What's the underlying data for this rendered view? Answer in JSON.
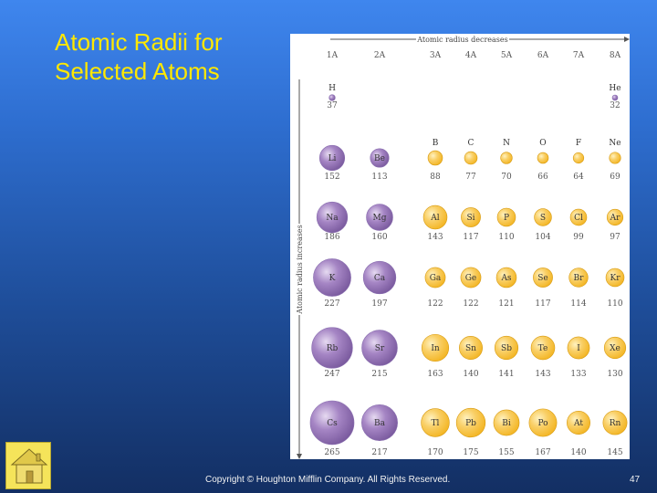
{
  "slide": {
    "title_lines": [
      "Atomic Radii for",
      "Selected Atoms"
    ],
    "footer": "Copyright © Houghton Mifflin Company. All Rights Reserved.",
    "page_number": "47"
  },
  "figure": {
    "top_arrow_label": "Atomic radius decreases",
    "side_arrow_label": "Atomic radius increases",
    "groups": [
      "1A",
      "2A",
      "3A",
      "4A",
      "5A",
      "6A",
      "7A",
      "8A"
    ],
    "colors": {
      "s_block": "#a585c4",
      "p_block": "#f3b523",
      "p_block_light": "#f9cf66"
    },
    "rows": [
      [
        {
          "symbol": "H",
          "radius": 37,
          "group": 0
        },
        {
          "symbol": "He",
          "radius": 32,
          "group": 7
        }
      ],
      [
        {
          "symbol": "Li",
          "radius": 152,
          "group": 0
        },
        {
          "symbol": "Be",
          "radius": 113,
          "group": 1
        },
        {
          "symbol": "B",
          "radius": 88,
          "group": 2
        },
        {
          "symbol": "C",
          "radius": 77,
          "group": 3
        },
        {
          "symbol": "N",
          "radius": 70,
          "group": 4
        },
        {
          "symbol": "O",
          "radius": 66,
          "group": 5
        },
        {
          "symbol": "F",
          "radius": 64,
          "group": 6
        },
        {
          "symbol": "Ne",
          "radius": 69,
          "group": 7
        }
      ],
      [
        {
          "symbol": "Na",
          "radius": 186,
          "group": 0
        },
        {
          "symbol": "Mg",
          "radius": 160,
          "group": 1
        },
        {
          "symbol": "Al",
          "radius": 143,
          "group": 2
        },
        {
          "symbol": "Si",
          "radius": 117,
          "group": 3
        },
        {
          "symbol": "P",
          "radius": 110,
          "group": 4
        },
        {
          "symbol": "S",
          "radius": 104,
          "group": 5
        },
        {
          "symbol": "Cl",
          "radius": 99,
          "group": 6
        },
        {
          "symbol": "Ar",
          "radius": 97,
          "group": 7
        }
      ],
      [
        {
          "symbol": "K",
          "radius": 227,
          "group": 0
        },
        {
          "symbol": "Ca",
          "radius": 197,
          "group": 1
        },
        {
          "symbol": "Ga",
          "radius": 122,
          "group": 2
        },
        {
          "symbol": "Ge",
          "radius": 122,
          "group": 3
        },
        {
          "symbol": "As",
          "radius": 121,
          "group": 4
        },
        {
          "symbol": "Se",
          "radius": 117,
          "group": 5
        },
        {
          "symbol": "Br",
          "radius": 114,
          "group": 6
        },
        {
          "symbol": "Kr",
          "radius": 110,
          "group": 7
        }
      ],
      [
        {
          "symbol": "Rb",
          "radius": 247,
          "group": 0
        },
        {
          "symbol": "Sr",
          "radius": 215,
          "group": 1
        },
        {
          "symbol": "In",
          "radius": 163,
          "group": 2
        },
        {
          "symbol": "Sn",
          "radius": 140,
          "group": 3
        },
        {
          "symbol": "Sb",
          "radius": 141,
          "group": 4
        },
        {
          "symbol": "Te",
          "radius": 143,
          "group": 5
        },
        {
          "symbol": "I",
          "radius": 133,
          "group": 6
        },
        {
          "symbol": "Xe",
          "radius": 130,
          "group": 7
        }
      ],
      [
        {
          "symbol": "Cs",
          "radius": 265,
          "group": 0
        },
        {
          "symbol": "Ba",
          "radius": 217,
          "group": 1
        },
        {
          "symbol": "Tl",
          "radius": 170,
          "group": 2
        },
        {
          "symbol": "Pb",
          "radius": 175,
          "group": 3
        },
        {
          "symbol": "Bi",
          "radius": 155,
          "group": 4
        },
        {
          "symbol": "Po",
          "radius": 167,
          "group": 5
        },
        {
          "symbol": "At",
          "radius": 140,
          "group": 6
        },
        {
          "symbol": "Rn",
          "radius": 145,
          "group": 7
        }
      ]
    ]
  }
}
